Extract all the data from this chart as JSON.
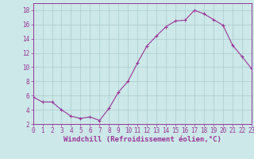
{
  "x": [
    0,
    1,
    2,
    3,
    4,
    5,
    6,
    7,
    8,
    9,
    10,
    11,
    12,
    13,
    14,
    15,
    16,
    17,
    18,
    19,
    20,
    21,
    22,
    23
  ],
  "y": [
    5.8,
    5.1,
    5.1,
    4.0,
    3.1,
    2.8,
    3.0,
    2.5,
    4.2,
    6.5,
    8.0,
    10.6,
    13.0,
    14.4,
    15.7,
    16.5,
    16.6,
    18.0,
    17.5,
    16.7,
    15.9,
    13.1,
    11.5,
    9.8
  ],
  "line_color": "#993399",
  "marker": "+",
  "marker_size": 3,
  "marker_linewidth": 0.8,
  "line_width": 0.8,
  "background_color": "#cce8e8",
  "grid_color": "#aacccc",
  "xlabel": "Windchill (Refroidissement éolien,°C)",
  "ylabel": "",
  "xlim": [
    0,
    23
  ],
  "ylim": [
    2,
    19
  ],
  "yticks": [
    2,
    4,
    6,
    8,
    10,
    12,
    14,
    16,
    18
  ],
  "xtick_labels": [
    "0",
    "1",
    "2",
    "3",
    "4",
    "5",
    "6",
    "7",
    "8",
    "9",
    "10",
    "11",
    "12",
    "13",
    "14",
    "15",
    "16",
    "17",
    "18",
    "19",
    "20",
    "21",
    "22",
    "23"
  ],
  "tick_fontsize": 5.5,
  "xlabel_fontsize": 6.5,
  "tick_color": "#993399",
  "spine_color": "#993399",
  "label_color": "#993399"
}
